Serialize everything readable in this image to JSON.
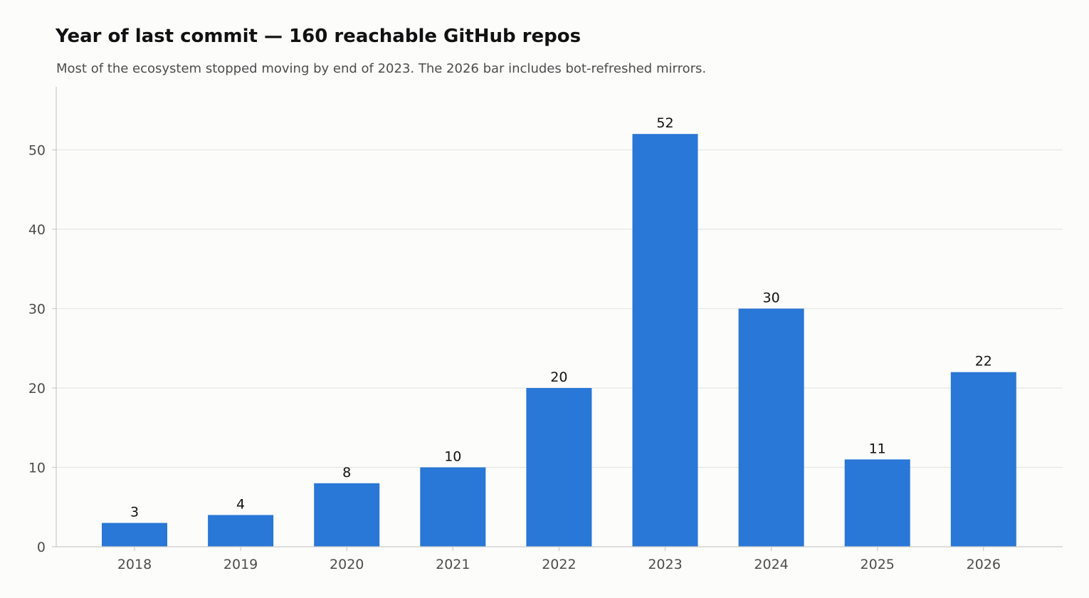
{
  "chart_data": {
    "type": "bar",
    "title": "Year of last commit — 160 reachable GitHub repos",
    "subtitle": "Most of the ecosystem stopped moving by end of 2023. The 2026 bar includes bot-refreshed mirrors.",
    "xlabel": "",
    "ylabel": "",
    "categories": [
      "2018",
      "2019",
      "2020",
      "2021",
      "2022",
      "2023",
      "2024",
      "2025",
      "2026"
    ],
    "values": [
      3,
      4,
      8,
      10,
      20,
      52,
      30,
      11,
      22
    ],
    "data_labels": [
      "3",
      "4",
      "8",
      "10",
      "20",
      "52",
      "30",
      "11",
      "22"
    ],
    "y_ticks": [
      0,
      10,
      20,
      30,
      40,
      50
    ],
    "ylim": [
      0,
      58
    ],
    "grid": "horizontal",
    "legend": "none",
    "colors": {
      "bar": "#2977d6",
      "grid": "#e6e6e6",
      "axis": "#cccccc",
      "tick_label": "#4d4d4d",
      "data_label": "#111111"
    }
  }
}
